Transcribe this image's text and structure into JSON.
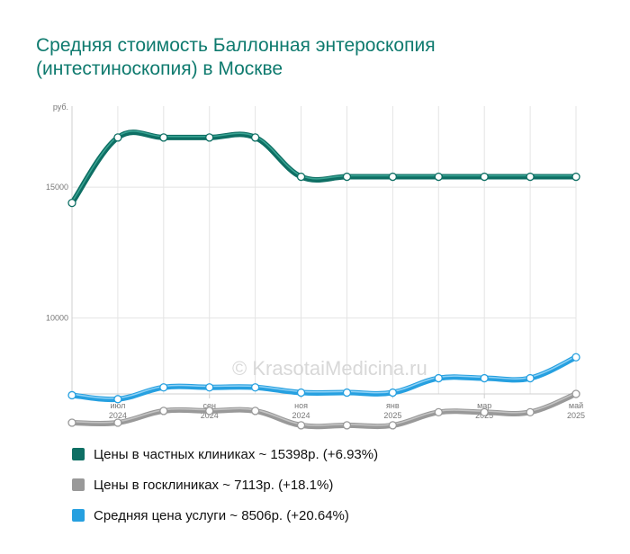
{
  "title_line1": "Средняя стоимость Баллонная энтероскопия",
  "title_line2": "(интестиноскопия) в Москве",
  "watermark": "© KrasotaiMedicina.ru",
  "chart_data": {
    "type": "line",
    "y_unit": "руб.",
    "ylim": [
      7100,
      18100
    ],
    "y_ticks": [
      10000,
      15000
    ],
    "y_tick_labels": [
      "10000",
      "15000"
    ],
    "x_tick_labels": [
      {
        "index": 1,
        "month": "июл",
        "year": "2024"
      },
      {
        "index": 3,
        "month": "сен",
        "year": "2024"
      },
      {
        "index": 5,
        "month": "ноя",
        "year": "2024"
      },
      {
        "index": 7,
        "month": "янв",
        "year": "2025"
      },
      {
        "index": 9,
        "month": "мар",
        "year": "2025"
      },
      {
        "index": 11,
        "month": "май",
        "year": "2025"
      }
    ],
    "grid": true,
    "legend_position": "bottom",
    "series": [
      {
        "name": "Цены в частных клиниках",
        "color": "#0e6f64",
        "highlight": "#3aa493",
        "values": [
          14400,
          16900,
          16900,
          16900,
          16900,
          15400,
          15400,
          15400,
          15400,
          15400,
          15400,
          15400
        ]
      },
      {
        "name": "Цены в госклиниках",
        "color": "#999999",
        "highlight": "#c4c4c4",
        "values": [
          6000,
          6000,
          6450,
          6450,
          6450,
          5900,
          5900,
          5900,
          6400,
          6400,
          6400,
          7100
        ]
      },
      {
        "name": "Средняя цена услуги",
        "color": "#26a0e0",
        "highlight": "#8fd1f5",
        "values": [
          7050,
          6900,
          7350,
          7350,
          7350,
          7150,
          7150,
          7150,
          7700,
          7700,
          7700,
          8500
        ]
      }
    ]
  },
  "legend": [
    {
      "label": "Цены в частных клиниках ~ 15398р. (+6.93%)",
      "color": "#0e6f64"
    },
    {
      "label": "Цены в госклиниках ~ 7113р. (+18.1%)",
      "color": "#999999"
    },
    {
      "label": "Средняя цена услуги ~ 8506р. (+20.64%)",
      "color": "#26a0e0"
    }
  ]
}
